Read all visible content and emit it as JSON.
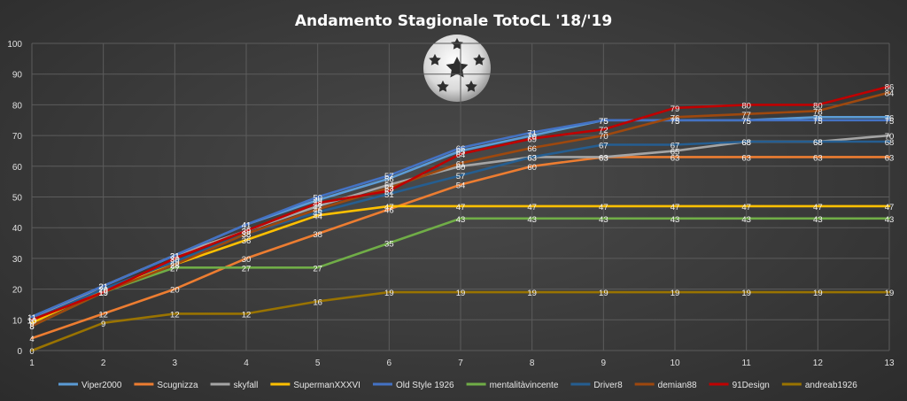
{
  "chart_data": {
    "type": "line",
    "title": "Andamento Stagionale TotoCL '18/'19",
    "xlabel": "",
    "ylabel": "",
    "x": [
      1,
      2,
      3,
      4,
      5,
      6,
      7,
      8,
      9,
      10,
      11,
      12,
      13
    ],
    "ylim": [
      0,
      100
    ],
    "yticks": [
      0,
      10,
      20,
      30,
      40,
      50,
      60,
      70,
      80,
      90,
      100
    ],
    "grid": true,
    "legend": "bottom",
    "logo_icon": "champions-league-starball-icon",
    "series": [
      {
        "name": "Viper2000",
        "color": "#5b9bd5",
        "values": [
          11,
          21,
          31,
          41,
          49,
          56,
          65,
          70,
          75,
          75,
          75,
          76,
          76
        ]
      },
      {
        "name": "Scugnizza",
        "color": "#ed7d31",
        "values": [
          4,
          12,
          20,
          30,
          38,
          46,
          54,
          60,
          63,
          63,
          63,
          63,
          63
        ]
      },
      {
        "name": "skyfall",
        "color": "#a5a5a5",
        "values": [
          10,
          21,
          31,
          39,
          47,
          54,
          60,
          63,
          63,
          65,
          68,
          68,
          70
        ]
      },
      {
        "name": "SupermanXXXVI",
        "color": "#ffc000",
        "values": [
          9,
          20,
          28,
          36,
          44,
          47,
          47,
          47,
          47,
          47,
          47,
          47,
          47
        ]
      },
      {
        "name": "Old Style 1926",
        "color": "#4472c4",
        "values": [
          11,
          21,
          31,
          41,
          50,
          57,
          66,
          71,
          75,
          75,
          75,
          75,
          75
        ]
      },
      {
        "name": "mentalitàvincente",
        "color": "#70ad47",
        "values": [
          8,
          19,
          27,
          27,
          27,
          35,
          43,
          43,
          43,
          43,
          43,
          43,
          43
        ]
      },
      {
        "name": "Driver8",
        "color": "#255e91",
        "values": [
          10,
          20,
          29,
          38,
          45,
          51,
          57,
          63,
          67,
          67,
          68,
          68,
          68
        ]
      },
      {
        "name": "demian88",
        "color": "#9e480e",
        "values": [
          8,
          19,
          28,
          38,
          46,
          53,
          61,
          66,
          70,
          76,
          77,
          78,
          84
        ]
      },
      {
        "name": "91Design",
        "color": "#c00000",
        "values": [
          10,
          19,
          30,
          39,
          48,
          52,
          64,
          69,
          72,
          79,
          80,
          80,
          86
        ]
      },
      {
        "name": "andreab1926",
        "color": "#997300",
        "values": [
          0,
          9,
          12,
          12,
          16,
          19,
          19,
          19,
          19,
          19,
          19,
          19,
          19
        ]
      }
    ]
  }
}
